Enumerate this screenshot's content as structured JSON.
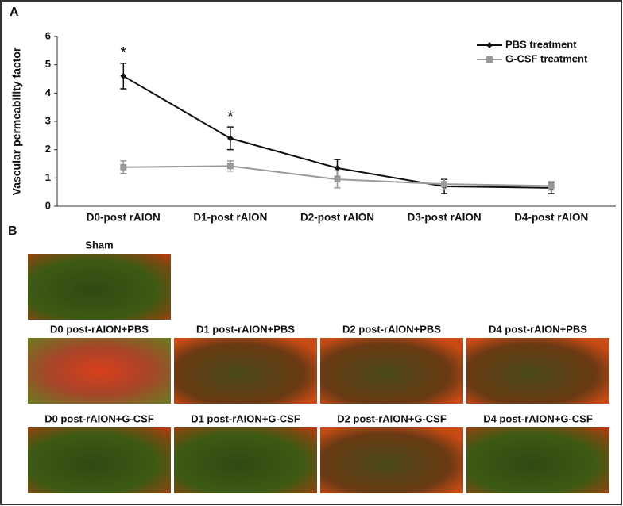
{
  "chart_data": {
    "type": "line",
    "panel_label": "A",
    "y_label": "Vascular permeability factor",
    "categories": [
      "D0-post rAION",
      "D1-post rAION",
      "D2-post rAION",
      "D3-post rAION",
      "D4-post rAION"
    ],
    "series": [
      {
        "name": "PBS treatment",
        "color": "#111111",
        "marker": "diamond",
        "values": [
          4.6,
          2.4,
          1.35,
          0.7,
          0.65
        ],
        "errors": [
          0.45,
          0.4,
          0.3,
          0.25,
          0.2
        ]
      },
      {
        "name": "G-CSF treatment",
        "color": "#9a9a9a",
        "marker": "square",
        "values": [
          1.38,
          1.42,
          0.95,
          0.78,
          0.72
        ],
        "errors": [
          0.22,
          0.18,
          0.3,
          0.2,
          0.15
        ]
      }
    ],
    "annotations": [
      {
        "text": "*",
        "category": "D0-post rAION"
      },
      {
        "text": "*",
        "category": "D1-post rAION"
      }
    ],
    "ylim": [
      0,
      6
    ],
    "yticks": [
      0,
      1,
      2,
      3,
      4,
      5,
      6
    ],
    "grid": false,
    "legend": "top-right"
  },
  "panel_b": {
    "label": "B",
    "images": [
      {
        "label": "Sham"
      },
      {
        "label": "D0 post-rAION+PBS"
      },
      {
        "label": "D1 post-rAION+PBS"
      },
      {
        "label": "D2 post-rAION+PBS"
      },
      {
        "label": "D4 post-rAION+PBS"
      },
      {
        "label": "D0 post-rAION+G-CSF"
      },
      {
        "label": "D1 post-rAION+G-CSF"
      },
      {
        "label": "D2 post-rAION+G-CSF"
      },
      {
        "label": "D4 post-rAION+G-CSF"
      }
    ]
  }
}
